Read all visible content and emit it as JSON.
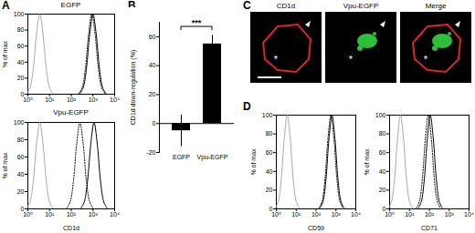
{
  "panel_labels": [
    "A",
    "B",
    "C",
    "D"
  ],
  "chart_data": [
    {
      "type": "line",
      "title": "EGFP",
      "ylabel": "% of max",
      "log": "x",
      "xlim": [
        1,
        10000
      ],
      "xticks": [
        {
          "value": 1,
          "label": "10⁰"
        },
        {
          "value": 10,
          "label": "10¹"
        },
        {
          "value": 100,
          "label": "10²"
        },
        {
          "value": 1000,
          "label": "10³"
        },
        {
          "value": 10000,
          "label": "10⁴"
        }
      ],
      "ylim": [
        0,
        100
      ],
      "yticks": [
        0,
        20,
        40,
        60,
        80,
        100
      ],
      "series": [
        {
          "color": "#a8a8a8",
          "line_style": "solid",
          "x": [
            0.89,
            1.26,
            1.78,
            2.51,
            3.55,
            5.01,
            7.08,
            10,
            14.1
          ],
          "values": [
            1,
            8,
            32,
            75,
            100,
            75,
            32,
            8,
            1
          ]
        },
        {
          "color": "#000000",
          "line_style": "dotted",
          "x": [
            224,
            316,
            447,
            631,
            891,
            1259,
            1778,
            2512,
            3548
          ],
          "values": [
            1,
            8,
            32,
            75,
            100,
            75,
            32,
            8,
            1
          ]
        },
        {
          "color": "#000000",
          "line_style": "solid",
          "x": [
            251,
            355,
            501,
            708,
            1000,
            1413,
            1995,
            2818,
            3981
          ],
          "values": [
            1,
            8,
            32,
            75,
            100,
            75,
            32,
            8,
            1
          ]
        }
      ]
    },
    {
      "type": "line",
      "title": "Vpu-EGFP",
      "ylabel": "% of max",
      "xlabel": "CD1d",
      "log": "x",
      "xlim": [
        1,
        10000
      ],
      "xticks": [
        {
          "value": 1,
          "label": "10⁰"
        },
        {
          "value": 10,
          "label": "10¹"
        },
        {
          "value": 100,
          "label": "10²"
        },
        {
          "value": 1000,
          "label": "10³"
        },
        {
          "value": 10000,
          "label": "10⁴"
        }
      ],
      "ylim": [
        0,
        100
      ],
      "yticks": [
        0,
        20,
        40,
        60,
        80,
        100
      ],
      "series": [
        {
          "color": "#a8a8a8",
          "line_style": "solid",
          "x": [
            0.89,
            1.26,
            1.78,
            2.51,
            3.55,
            5.01,
            7.08,
            10,
            14.1
          ],
          "values": [
            1,
            8,
            32,
            75,
            100,
            75,
            32,
            8,
            1
          ]
        },
        {
          "color": "#000000",
          "line_style": "dotted",
          "x": [
            63.1,
            89.1,
            126,
            178,
            251,
            355,
            501,
            708,
            1000
          ],
          "values": [
            1,
            8,
            32,
            75,
            100,
            75,
            32,
            8,
            1
          ]
        },
        {
          "color": "#000000",
          "line_style": "solid",
          "x": [
            282,
            398,
            562,
            794,
            1122,
            1585,
            2239,
            3162,
            4467
          ],
          "values": [
            1,
            8,
            32,
            75,
            100,
            75,
            32,
            8,
            1
          ]
        }
      ]
    },
    {
      "type": "bar",
      "ylabel": "CD1d down-regulation (%)",
      "categories": [
        "EGFP",
        "Vpu-EGFP"
      ],
      "values": [
        -5,
        55
      ],
      "errors": [
        11,
        6
      ],
      "color": "#000000",
      "ylim": [
        -20,
        70
      ],
      "yticks": [
        -20,
        0,
        20,
        40,
        60
      ],
      "annotation": "***"
    },
    {
      "type": "line",
      "ylabel": "% of max",
      "xlabel": "CD59",
      "log": "x",
      "xlim": [
        1,
        10000
      ],
      "xticks": [
        {
          "value": 1,
          "label": "10⁰"
        },
        {
          "value": 10,
          "label": "10¹"
        },
        {
          "value": 100,
          "label": "10²"
        },
        {
          "value": 1000,
          "label": "10³"
        },
        {
          "value": 10000,
          "label": "10⁴"
        }
      ],
      "ylim": [
        0,
        100
      ],
      "yticks": [
        0,
        20,
        40,
        60,
        80,
        100
      ],
      "series": [
        {
          "color": "#a8a8a8",
          "line_style": "solid",
          "x": [
            0.89,
            1.26,
            1.78,
            2.51,
            3.55,
            5.01,
            7.08,
            10,
            14.1
          ],
          "values": [
            1,
            8,
            32,
            75,
            100,
            75,
            32,
            8,
            1
          ]
        },
        {
          "color": "#000000",
          "line_style": "dotted",
          "x": [
            141,
            200,
            282,
            398,
            562,
            794,
            1122,
            1585,
            2239
          ],
          "values": [
            1,
            8,
            32,
            75,
            100,
            75,
            32,
            8,
            1
          ]
        },
        {
          "color": "#000000",
          "line_style": "solid",
          "x": [
            158,
            224,
            316,
            447,
            631,
            891,
            1259,
            1778,
            2512
          ],
          "values": [
            1,
            8,
            32,
            75,
            100,
            75,
            32,
            8,
            1
          ]
        }
      ]
    },
    {
      "type": "line",
      "ylabel": "% of max",
      "xlabel": "CD71",
      "log": "x",
      "xlim": [
        1,
        10000
      ],
      "xticks": [
        {
          "value": 1,
          "label": "10⁰"
        },
        {
          "value": 10,
          "label": "10¹"
        },
        {
          "value": 100,
          "label": "10²"
        },
        {
          "value": 1000,
          "label": "10³"
        },
        {
          "value": 10000,
          "label": "10⁴"
        }
      ],
      "ylim": [
        0,
        100
      ],
      "yticks": [
        0,
        20,
        40,
        60,
        80,
        100
      ],
      "series": [
        {
          "color": "#a8a8a8",
          "line_style": "solid",
          "x": [
            0.89,
            1.26,
            1.78,
            2.51,
            3.55,
            5.01,
            7.08,
            10,
            14.1
          ],
          "values": [
            1,
            8,
            32,
            75,
            100,
            75,
            32,
            8,
            1
          ]
        },
        {
          "color": "#000000",
          "line_style": "dotted",
          "x": [
            22.4,
            31.6,
            44.7,
            63.1,
            89.1,
            126,
            178,
            251,
            355
          ],
          "values": [
            1,
            8,
            32,
            75,
            100,
            75,
            32,
            8,
            1
          ]
        },
        {
          "color": "#000000",
          "line_style": "solid",
          "x": [
            28.2,
            39.8,
            56.2,
            79.4,
            112,
            158,
            224,
            316,
            447
          ],
          "values": [
            1,
            8,
            32,
            75,
            100,
            75,
            32,
            8,
            1
          ]
        }
      ]
    }
  ],
  "images": {
    "panels": [
      "CD1d",
      "Vpu-EGFP",
      "Merge"
    ],
    "annotations": [
      "*"
    ]
  }
}
